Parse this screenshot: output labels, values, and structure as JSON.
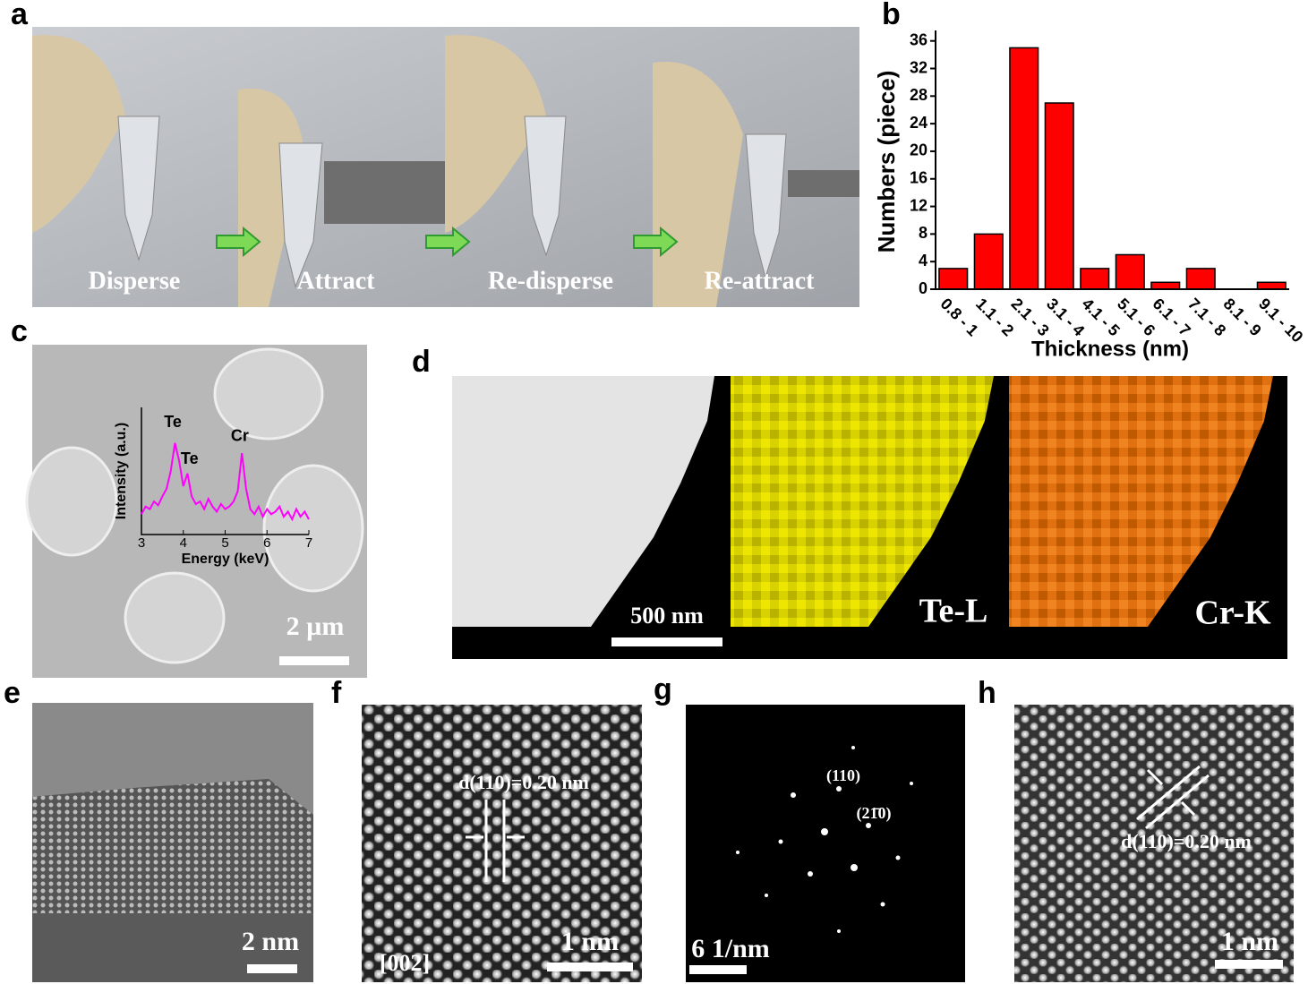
{
  "panel_labels": [
    "a",
    "b",
    "c",
    "d",
    "e",
    "f",
    "g",
    "h"
  ],
  "panel_a": {
    "captions": [
      "Disperse",
      "Attract",
      "Re-disperse",
      "Re-attract"
    ]
  },
  "panel_c": {
    "scale_bar": "2 µm"
  },
  "panel_d": {
    "scale_bar": "500 nm",
    "maps": [
      "Te-L",
      "Cr-K"
    ]
  },
  "panel_e": {
    "scale_bar": "2 nm"
  },
  "panel_f": {
    "spacing": "d(110)=0.20 nm",
    "zone_axis": "[002]",
    "scale_bar": "1 nm"
  },
  "panel_g": {
    "spots": [
      "(110)",
      "(21̄0)"
    ],
    "scale_bar": "6 1/nm"
  },
  "panel_h": {
    "spacing": "d(110)=0.20 nm",
    "scale_bar": "1 nm"
  },
  "chart_data": [
    {
      "type": "bar",
      "x_label": "Thickness (nm)",
      "y_label": "Numbers (piece)",
      "categories": [
        "0.8 - 1",
        "1.1 - 2",
        "2.1 - 3",
        "3.1 - 4",
        "4.1 - 5",
        "5.1 - 6",
        "6.1 - 7",
        "7.1 - 8",
        "8.1 - 9",
        "9.1 - 10"
      ],
      "values": [
        3,
        8,
        35,
        27,
        3,
        5,
        1,
        3,
        0,
        1
      ],
      "color": "#ff0000",
      "ylim": [
        0,
        37
      ],
      "yticks": [
        0,
        4,
        8,
        12,
        16,
        20,
        24,
        28,
        32,
        36
      ]
    },
    {
      "type": "line",
      "x_label": "Energy (keV)",
      "y_label": "Intensity (a.u.)",
      "x": [
        3.0,
        3.1,
        3.2,
        3.3,
        3.4,
        3.5,
        3.6,
        3.7,
        3.8,
        3.9,
        4.0,
        4.1,
        4.2,
        4.3,
        4.4,
        4.5,
        4.6,
        4.7,
        4.8,
        4.9,
        5.0,
        5.1,
        5.2,
        5.3,
        5.4,
        5.5,
        5.6,
        5.7,
        5.8,
        5.9,
        6.0,
        6.1,
        6.2,
        6.3,
        6.4,
        6.5,
        6.6,
        6.7,
        6.8,
        6.9,
        7.0
      ],
      "series": [
        {
          "color": "#ff00ff",
          "values": [
            1.6,
            2.2,
            2.0,
            2.6,
            2.3,
            3.0,
            3.6,
            5.0,
            7.2,
            5.8,
            3.8,
            4.8,
            3.0,
            2.4,
            2.6,
            2.0,
            2.8,
            2.2,
            1.8,
            2.4,
            2.0,
            2.2,
            2.6,
            3.4,
            6.4,
            3.6,
            2.0,
            1.6,
            2.2,
            1.4,
            2.0,
            1.6,
            1.8,
            2.2,
            1.4,
            1.8,
            1.2,
            2.0,
            1.4,
            1.8,
            1.2
          ]
        }
      ],
      "xlim": [
        3,
        7
      ],
      "xticks": [
        3,
        4,
        5,
        6,
        7
      ],
      "ylim": [
        0,
        10
      ],
      "annotations": [
        {
          "text": "Te",
          "x": 3.75,
          "y": 8.8
        },
        {
          "text": "Te",
          "x": 4.15,
          "y": 5.9
        },
        {
          "text": "Cr",
          "x": 5.35,
          "y": 7.7
        }
      ]
    }
  ]
}
